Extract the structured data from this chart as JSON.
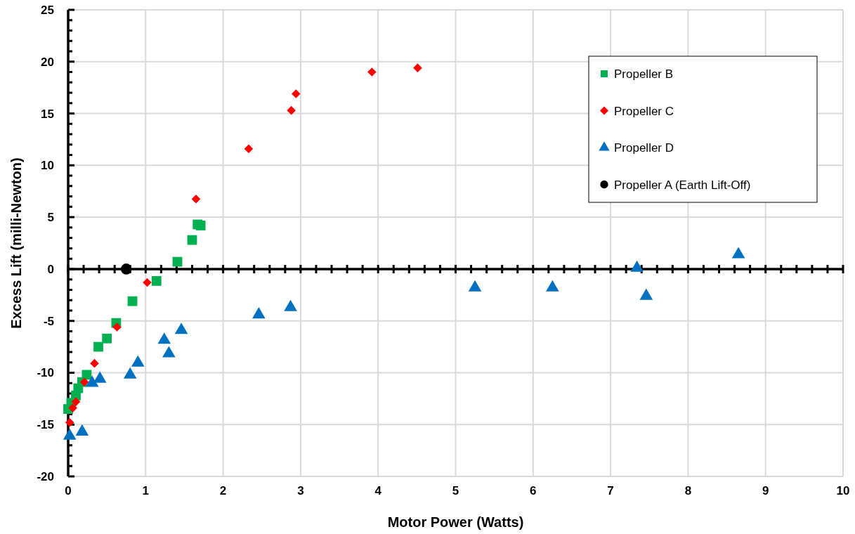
{
  "chart_data": {
    "type": "scatter",
    "xlabel": "Motor Power (Watts)",
    "ylabel": "Excess Lift (milli-Newton)",
    "xlim": [
      0,
      10
    ],
    "xticks": [
      0,
      1,
      2,
      3,
      4,
      5,
      6,
      7,
      8,
      9,
      10
    ],
    "ylim": [
      -20,
      25
    ],
    "yticks": [
      -20,
      -15,
      -10,
      -5,
      0,
      5,
      10,
      15,
      20,
      25
    ],
    "grid": true,
    "legend": "top right",
    "series": [
      {
        "name": "Propeller B",
        "color": "#00b050",
        "marker": "square",
        "x": [
          0,
          0.04,
          0.1,
          0.13,
          0.18,
          0.24,
          0.39,
          0.5,
          0.62,
          0.83,
          1.14,
          1.41,
          1.6,
          1.67,
          1.71
        ],
        "values": [
          -13.5,
          -12.9,
          -12.2,
          -11.5,
          -10.9,
          -10.2,
          -7.5,
          -6.7,
          -5.2,
          -3.1,
          -1.15,
          0.7,
          2.8,
          4.3,
          4.2
        ]
      },
      {
        "name": "Propeller C",
        "color": "#ff0000",
        "marker": "diamond",
        "x": [
          0.02,
          0.06,
          0.1,
          0.21,
          0.34,
          0.63,
          1.02,
          1.65,
          2.33,
          2.88,
          2.94,
          3.92,
          4.51
        ],
        "values": [
          -14.8,
          -13.4,
          -12.8,
          -10.9,
          -9.1,
          -5.6,
          -1.3,
          6.75,
          11.6,
          15.3,
          16.9,
          19.0,
          19.4
        ]
      },
      {
        "name": "Propeller D",
        "color": "#0070c0",
        "marker": "triangle",
        "x": [
          0.02,
          0.18,
          0.31,
          0.41,
          0.8,
          0.9,
          1.24,
          1.3,
          1.46,
          2.46,
          2.87,
          5.25,
          6.25,
          7.34,
          7.46,
          8.65
        ],
        "values": [
          -16.1,
          -15.7,
          -11,
          -10.6,
          -10.2,
          -9.05,
          -6.85,
          -8.15,
          -5.9,
          -4.4,
          -3.7,
          -1.8,
          -1.8,
          0.1,
          -2.6,
          1.4
        ]
      },
      {
        "name": "Propeller A (Earth Lift-Off)",
        "color": "#000000",
        "marker": "circle",
        "x": [
          0.75
        ],
        "values": [
          0
        ]
      }
    ]
  }
}
